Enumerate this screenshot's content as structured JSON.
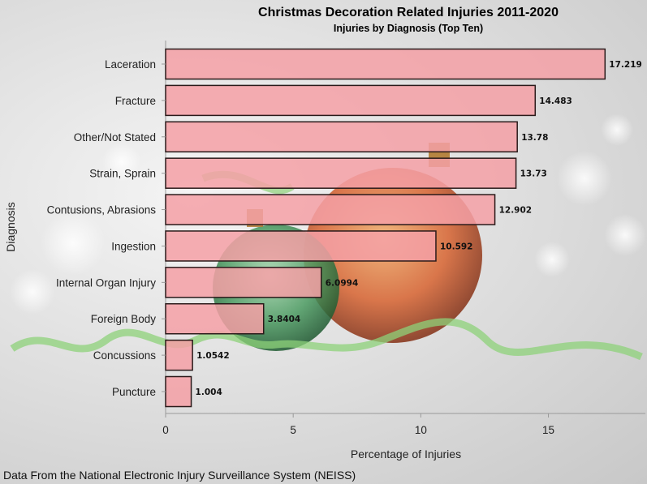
{
  "chart_data": {
    "type": "bar",
    "orientation": "horizontal",
    "title": "Christmas Decoration Related Injuries 2011-2020",
    "subtitle": "Injuries by Diagnosis (Top Ten)",
    "xlabel": "Percentage of Injuries",
    "ylabel": "Diagnosis",
    "categories": [
      "Laceration",
      "Fracture",
      "Other/Not Stated",
      "Strain, Sprain",
      "Contusions, Abrasions",
      "Ingestion",
      "Internal Organ Injury",
      "Foreign Body",
      "Concussions",
      "Puncture"
    ],
    "values": [
      17.219,
      14.483,
      13.78,
      13.73,
      12.902,
      10.592,
      6.0994,
      3.8404,
      1.0542,
      1.004
    ],
    "value_labels": [
      "17.219",
      "14.483",
      "13.78",
      "13.73",
      "12.902",
      "10.592",
      "6.0994",
      "3.8404",
      "1.0542",
      "1.004"
    ],
    "xlim": [
      0,
      18.8
    ],
    "xticks": [
      0,
      5,
      10,
      15
    ],
    "xtick_labels": [
      "0",
      "5",
      "10",
      "15"
    ],
    "bar_color": "#f4a0a6",
    "bar_edge_color": "#2a1a1a",
    "grid": false,
    "legend": "none",
    "footnote": "Data From the National Electronic Injury Surveillance System (NEISS)"
  }
}
